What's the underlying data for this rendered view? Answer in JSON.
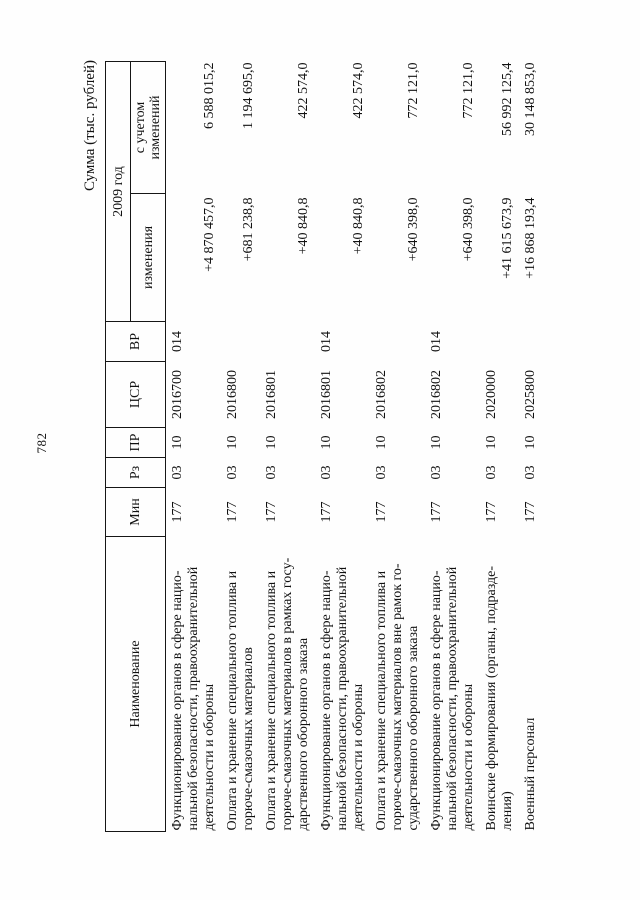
{
  "page": {
    "number": "782",
    "caption": "Сумма (тыс. рублей)"
  },
  "table": {
    "headers": {
      "name": "Наименование",
      "min": "Мин",
      "rz": "Рз",
      "pr": "ПР",
      "csr": "ЦСР",
      "vr": "ВР",
      "year": "2009 год",
      "changes": "изменения",
      "with_changes": "с учетом\nизменений"
    },
    "rows": [
      {
        "name": "Функционирование органов в сфере нацио-\nнальной безопасности, правоохранительной\nдеятельности и обороны",
        "min": "177",
        "rz": "03",
        "pr": "10",
        "csr": "2016700",
        "vr": "014",
        "change": "+4 870 457,0",
        "total": "6 588 015,2"
      },
      {
        "name": "Оплата и хранение специального топлива и\nгорюче-смазочных материалов",
        "min": "177",
        "rz": "03",
        "pr": "10",
        "csr": "2016800",
        "vr": "",
        "change": "+681 238,8",
        "total": "1 194 695,0"
      },
      {
        "name": "Оплата и хранение специального топлива и\nгорюче-смазочных материалов в рамках госу-\nдарственного оборонного заказа",
        "min": "177",
        "rz": "03",
        "pr": "10",
        "csr": "2016801",
        "vr": "",
        "change": "+40 840,8",
        "total": "422 574,0"
      },
      {
        "name": "Функционирование органов в сфере нацио-\nнальной безопасности, правоохранительной\nдеятельности и обороны",
        "min": "177",
        "rz": "03",
        "pr": "10",
        "csr": "2016801",
        "vr": "014",
        "change": "+40 840,8",
        "total": "422 574,0"
      },
      {
        "name": "Оплата и хранение специального топлива и\nгорюче-смазочных материалов вне рамок го-\nсударственного оборонного заказа",
        "min": "177",
        "rz": "03",
        "pr": "10",
        "csr": "2016802",
        "vr": "",
        "change": "+640 398,0",
        "total": "772 121,0"
      },
      {
        "name": "Функционирование органов в сфере нацио-\nнальной безопасности, правоохранительной\nдеятельности и обороны",
        "min": "177",
        "rz": "03",
        "pr": "10",
        "csr": "2016802",
        "vr": "014",
        "change": "+640 398,0",
        "total": "772 121,0"
      },
      {
        "name": "Воинские формирования (органы, подразде-\nления)",
        "min": "177",
        "rz": "03",
        "pr": "10",
        "csr": "2020000",
        "vr": "",
        "change": "+41 615 673,9",
        "total": "56 992 125,4"
      },
      {
        "name": "Военный персонал",
        "min": "177",
        "rz": "03",
        "pr": "10",
        "csr": "2025800",
        "vr": "",
        "change": "+16 868 193,4",
        "total": "30 148 853,0"
      }
    ]
  }
}
